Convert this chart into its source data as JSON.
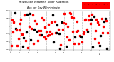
{
  "title": "Milwaukee Weather  Solar Radiation",
  "subtitle": "Avg per Day W/m²/minute",
  "bg_color": "#ffffff",
  "plot_bg_color": "#ffffff",
  "grid_color": "#bbbbbb",
  "dot_color_red": "#ff0000",
  "dot_color_black": "#000000",
  "highlight_color": "#ff0000",
  "ylim": [
    0,
    1.0
  ],
  "xlim": [
    -1,
    112
  ],
  "num_points": 110,
  "seed": 7
}
